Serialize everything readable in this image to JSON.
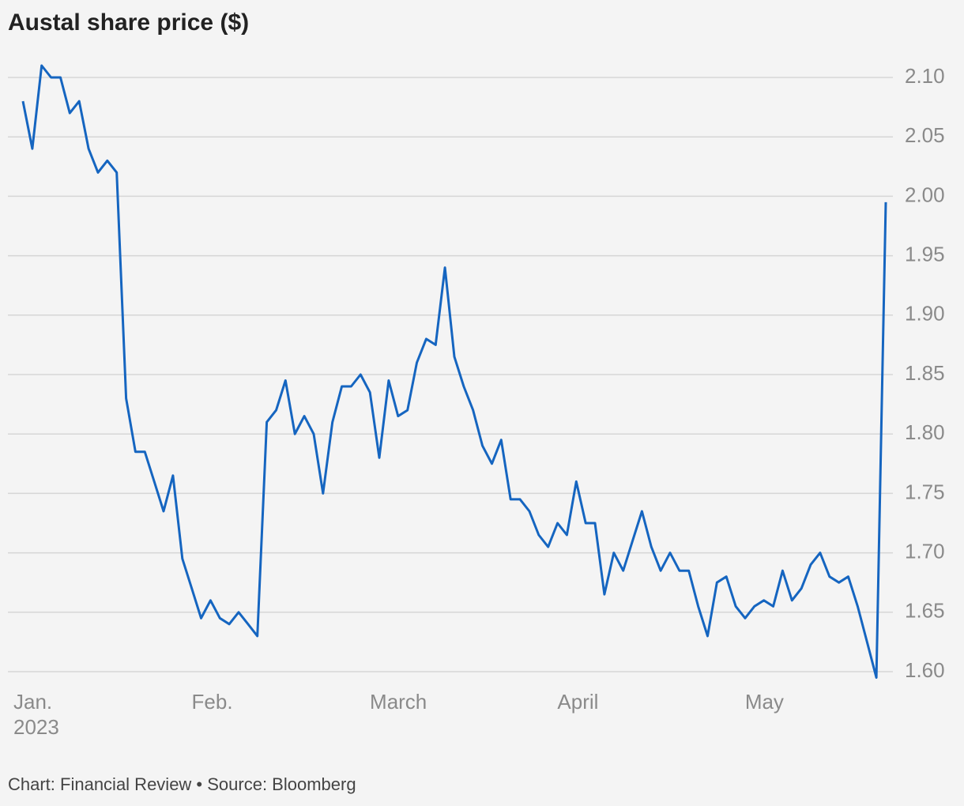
{
  "chart_data": {
    "type": "line",
    "title": "Austal share price ($)",
    "source": "Chart: Financial Review • Source: Bloomberg",
    "categories": [
      "Jan.\n2023",
      null,
      null,
      null,
      null,
      null,
      null,
      null,
      null,
      null,
      null,
      null,
      null,
      null,
      null,
      null,
      null,
      null,
      null,
      "Feb.",
      null,
      null,
      null,
      null,
      null,
      null,
      null,
      null,
      null,
      null,
      null,
      null,
      null,
      null,
      null,
      null,
      null,
      null,
      "March",
      null,
      null,
      null,
      null,
      null,
      null,
      null,
      null,
      null,
      null,
      null,
      null,
      null,
      null,
      null,
      null,
      null,
      null,
      null,
      "April",
      null,
      null,
      null,
      null,
      null,
      null,
      null,
      null,
      null,
      null,
      null,
      null,
      null,
      null,
      null,
      null,
      null,
      null,
      null,
      "May",
      null,
      null,
      null,
      null,
      null,
      null,
      null,
      null,
      null,
      null,
      null,
      null,
      null,
      null
    ],
    "series": [
      {
        "name": "Austal",
        "color": "#1565c0",
        "values": [
          2.08,
          2.04,
          2.11,
          2.1,
          2.1,
          2.07,
          2.08,
          2.04,
          2.02,
          2.03,
          2.02,
          1.83,
          1.785,
          1.785,
          1.76,
          1.735,
          1.765,
          1.695,
          1.67,
          1.645,
          1.66,
          1.645,
          1.64,
          1.65,
          1.64,
          1.63,
          1.81,
          1.82,
          1.845,
          1.8,
          1.815,
          1.8,
          1.75,
          1.81,
          1.84,
          1.84,
          1.85,
          1.835,
          1.78,
          1.845,
          1.815,
          1.82,
          1.86,
          1.88,
          1.875,
          1.94,
          1.865,
          1.84,
          1.82,
          1.79,
          1.775,
          1.795,
          1.745,
          1.745,
          1.735,
          1.715,
          1.705,
          1.725,
          1.715,
          1.76,
          1.725,
          1.725,
          1.665,
          1.7,
          1.685,
          1.71,
          1.735,
          1.705,
          1.685,
          1.7,
          1.685,
          1.685,
          1.655,
          1.63,
          1.675,
          1.68,
          1.655,
          1.645,
          1.655,
          1.66,
          1.655,
          1.685,
          1.66,
          1.67,
          1.69,
          1.7,
          1.68,
          1.675,
          1.68,
          1.655,
          1.625,
          1.595,
          1.995
        ]
      }
    ],
    "ylim": [
      1.6,
      2.1
    ],
    "yticks": [
      {
        "value": 1.6,
        "label": "1.60"
      },
      {
        "value": 1.65,
        "label": "1.65"
      },
      {
        "value": 1.7,
        "label": "1.70"
      },
      {
        "value": 1.75,
        "label": "1.75"
      },
      {
        "value": 1.8,
        "label": "1.80"
      },
      {
        "value": 1.85,
        "label": "1.85"
      },
      {
        "value": 1.9,
        "label": "1.90"
      },
      {
        "value": 1.95,
        "label": "1.95"
      },
      {
        "value": 2.0,
        "label": "2.00"
      },
      {
        "value": 2.05,
        "label": "2.05"
      },
      {
        "value": 2.1,
        "label": "2.10"
      }
    ],
    "grid": true
  }
}
